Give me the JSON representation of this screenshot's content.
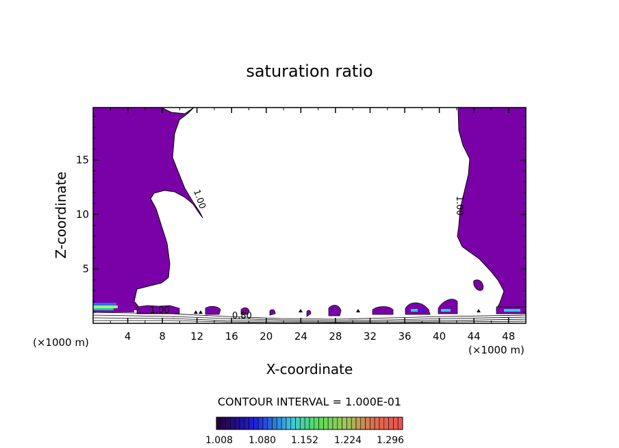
{
  "chart_data": {
    "type": "contour",
    "title": "saturation ratio",
    "xlabel": "X-coordinate",
    "ylabel": "Z-coordinate",
    "x_unit_left": "(×1000 m)",
    "x_unit_right": "(×1000 m)",
    "xlim": [
      0,
      50
    ],
    "ylim": [
      0,
      19.8
    ],
    "xticks": [
      4,
      8,
      12,
      16,
      20,
      24,
      28,
      32,
      36,
      40,
      44,
      48
    ],
    "yticks": [
      5,
      10,
      15
    ],
    "contour_labels": [
      {
        "text": "1.00",
        "x": 12.0,
        "z": 11.3,
        "angle": 70
      },
      {
        "text": "1.00",
        "x": 42.0,
        "z": 10.8,
        "angle": 90
      },
      {
        "text": "0.80",
        "x": 17.2,
        "z": 0.45,
        "angle": 0
      },
      {
        "text": "1.00",
        "x": 7.7,
        "z": 0.95,
        "angle": 0
      }
    ],
    "contour_interval_text": "CONTOUR INTERVAL = 1.000E-01",
    "colorbar": {
      "labels": [
        "1.008",
        "1.080",
        "1.152",
        "1.224",
        "1.296"
      ]
    },
    "fill_color": "#7a00a8"
  }
}
